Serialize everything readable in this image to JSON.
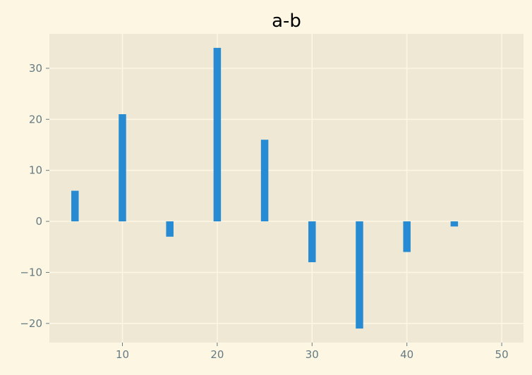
{
  "chart_data": {
    "type": "bar",
    "title": "a-b",
    "xlabel": "",
    "ylabel": "",
    "x": [
      5,
      10,
      15,
      20,
      25,
      30,
      35,
      40,
      45
    ],
    "values": [
      6,
      21,
      -3,
      34,
      16,
      -8,
      -21,
      -6,
      -1
    ],
    "xlim": [
      2.3,
      52.3
    ],
    "ylim": [
      -23.75,
      36.75
    ],
    "xticks": [
      10,
      20,
      30,
      40,
      50
    ],
    "yticks": [
      -20,
      -10,
      0,
      10,
      20,
      30
    ],
    "xtick_labels": [
      "10",
      "20",
      "30",
      "40",
      "50"
    ],
    "ytick_labels": [
      "−20",
      "−10",
      "0",
      "10",
      "20",
      "30"
    ],
    "grid": true,
    "colors": {
      "bar": "#268bd2",
      "axes_bg": "#eee8d5",
      "figure_bg": "#fdf6e3",
      "grid": "#fdf6e3",
      "tick_text": "#657b83",
      "title_text": "#000000"
    }
  }
}
